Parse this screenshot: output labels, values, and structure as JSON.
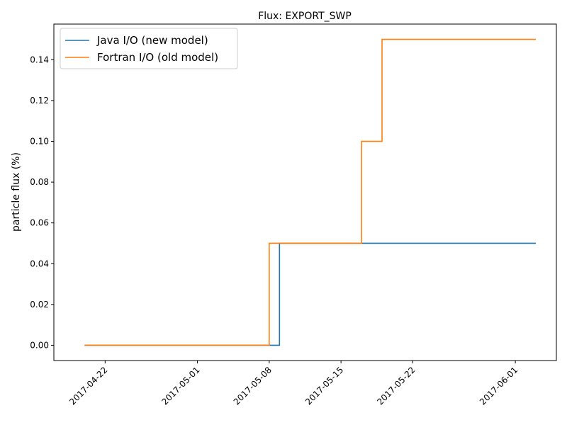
{
  "chart_data": {
    "type": "line",
    "step": true,
    "title": "Flux: EXPORT_SWP",
    "xlabel": "",
    "ylabel": "particle flux (%)",
    "x_type": "date",
    "xlim": [
      "2017-04-17",
      "2017-06-05"
    ],
    "ylim": [
      -0.0075,
      0.1575
    ],
    "x_ticks": [
      "2017-04-22",
      "2017-05-01",
      "2017-05-08",
      "2017-05-15",
      "2017-05-22",
      "2017-06-01"
    ],
    "y_ticks": [
      0.0,
      0.02,
      0.04,
      0.06,
      0.08,
      0.1,
      0.12,
      0.14
    ],
    "y_tick_labels": [
      "0.00",
      "0.02",
      "0.04",
      "0.06",
      "0.08",
      "0.10",
      "0.12",
      "0.14"
    ],
    "grid": false,
    "legend_position": "top-left",
    "series": [
      {
        "name": "Java I/O (new model)",
        "color": "#1f77b4",
        "x": [
          "2017-04-20",
          "2017-05-09",
          "2017-06-03"
        ],
        "y": [
          0.0,
          0.05,
          0.05
        ]
      },
      {
        "name": "Fortran I/O (old model)",
        "color": "#ff7f0e",
        "x": [
          "2017-04-20",
          "2017-05-08",
          "2017-05-17",
          "2017-05-19",
          "2017-06-03"
        ],
        "y": [
          0.0,
          0.05,
          0.1,
          0.15,
          0.15
        ]
      }
    ]
  }
}
